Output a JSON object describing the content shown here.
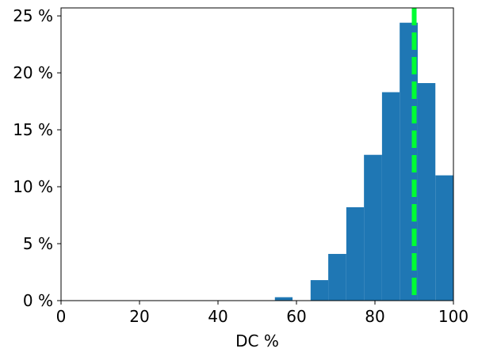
{
  "chart_data": {
    "type": "bar",
    "subtype": "histogram",
    "title": "",
    "xlabel": "DC %",
    "ylabel": "",
    "xlim": [
      0,
      100
    ],
    "ylim": [
      0,
      25.7
    ],
    "x_ticks": [
      0,
      20,
      40,
      60,
      80,
      100
    ],
    "x_tick_labels": [
      "0",
      "20",
      "40",
      "60",
      "80",
      "100"
    ],
    "y_ticks": [
      0,
      5,
      10,
      15,
      20,
      25
    ],
    "y_tick_labels": [
      "0 %",
      "5 %",
      "10 %",
      "15 %",
      "20 %",
      "25 %"
    ],
    "bins": [
      {
        "x0": 54.5,
        "x1": 59.0,
        "value": 0.3
      },
      {
        "x0": 59.0,
        "x1": 63.6,
        "value": 0.0
      },
      {
        "x0": 63.6,
        "x1": 68.1,
        "value": 1.8
      },
      {
        "x0": 68.1,
        "x1": 72.7,
        "value": 4.1
      },
      {
        "x0": 72.7,
        "x1": 77.2,
        "value": 8.2
      },
      {
        "x0": 77.2,
        "x1": 81.8,
        "value": 12.8
      },
      {
        "x0": 81.8,
        "x1": 86.3,
        "value": 18.3
      },
      {
        "x0": 86.3,
        "x1": 90.9,
        "value": 24.4
      },
      {
        "x0": 90.9,
        "x1": 95.4,
        "value": 19.1
      },
      {
        "x0": 95.4,
        "x1": 100.0,
        "value": 11.0
      }
    ],
    "reference_line": {
      "x": 90,
      "style": "dashed",
      "color": "#00ff33"
    },
    "bar_color": "#1f77b4",
    "grid": false,
    "legend": "none"
  }
}
